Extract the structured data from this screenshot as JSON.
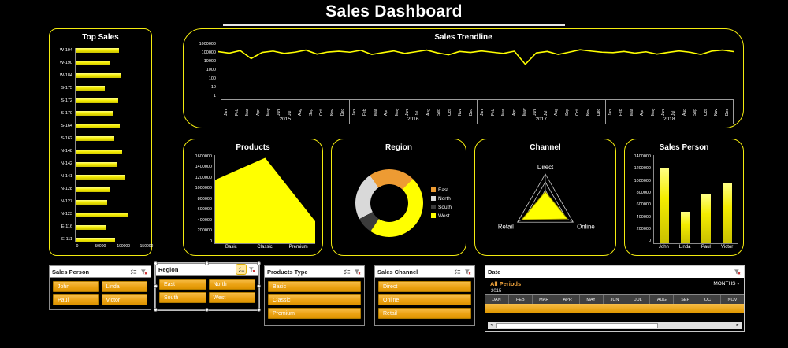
{
  "title": "Sales Dashboard",
  "colors": {
    "background": "#000000",
    "accent_yellow": "#FFF200",
    "slicer_gold": "#EBA213",
    "text_white": "#FFFFFF",
    "period_gold": "#EFA33C"
  },
  "chart_data": [
    {
      "panel": "top-sales",
      "type": "barh",
      "title": "Top Sales",
      "categories": [
        "W-194",
        "W-190",
        "W-184",
        "S-175",
        "S-172",
        "S-170",
        "S-164",
        "S-162",
        "N-148",
        "N-142",
        "N-141",
        "N-128",
        "N-127",
        "N-123",
        "E-116",
        "E-111"
      ],
      "values": [
        92000,
        72000,
        96000,
        62000,
        90000,
        78000,
        93000,
        81000,
        99000,
        87000,
        104000,
        73000,
        66000,
        112000,
        64000,
        84000
      ],
      "xticks": [
        "0",
        "50000",
        "100000",
        "150000"
      ],
      "xmax": 150000,
      "bar_color": "#FFFF00"
    },
    {
      "panel": "sales-trendline",
      "type": "line",
      "title": "Sales Trendline",
      "yticks": [
        "1000000",
        "100000",
        "10000",
        "1000",
        "100",
        "10",
        "1"
      ],
      "log_max": 6,
      "months": [
        "Jan",
        "Feb",
        "Mar",
        "Apr",
        "May",
        "Jun",
        "Jul",
        "Aug",
        "Sep",
        "Oct",
        "Nov",
        "Dec"
      ],
      "years": [
        "2015",
        "2016",
        "2017",
        "2018"
      ],
      "values": [
        110000,
        75000,
        140000,
        20000,
        90000,
        125000,
        70000,
        95000,
        160000,
        60000,
        100000,
        120000,
        95000,
        150000,
        55000,
        85000,
        130000,
        70000,
        105000,
        160000,
        80000,
        50000,
        115000,
        90000,
        130000,
        95000,
        70000,
        120000,
        5000,
        80000,
        115000,
        55000,
        95000,
        170000,
        125000,
        95000,
        85000,
        115000,
        75000,
        105000,
        60000,
        90000,
        130000,
        95000,
        55000,
        125000,
        160000,
        110000
      ],
      "line_color": "#FFFF00"
    },
    {
      "panel": "products",
      "type": "area",
      "title": "Products",
      "categories": [
        "Basic",
        "Classic",
        "Premium"
      ],
      "values": [
        1150000,
        1550000,
        400000
      ],
      "yticks": [
        "1600000",
        "1400000",
        "1200000",
        "1000000",
        "800000",
        "600000",
        "400000",
        "200000",
        "0"
      ],
      "ymax": 1600000,
      "fill_color": "#FFFF00"
    },
    {
      "panel": "region",
      "type": "donut",
      "title": "Region",
      "start_angle": -35,
      "segments": [
        {
          "name": "East",
          "value": 22,
          "color": "#ED9B33"
        },
        {
          "name": "West",
          "value": 47,
          "color": "#FFFF00"
        },
        {
          "name": "South",
          "value": 8,
          "color": "#3B3B3B"
        },
        {
          "name": "North",
          "value": 23,
          "color": "#D9D9D9"
        }
      ],
      "legend_order": [
        "East",
        "North",
        "South",
        "West"
      ]
    },
    {
      "panel": "channel",
      "type": "radar",
      "title": "Channel",
      "axes": [
        "Direct",
        "Online",
        "Retail"
      ],
      "values": [
        0.45,
        0.8,
        0.85
      ],
      "rings": 4,
      "fill_color": "#FFFF00",
      "grid_color": "#E3E3E3"
    },
    {
      "panel": "sales-person",
      "type": "column",
      "title": "Sales Person",
      "categories": [
        "John",
        "Linda",
        "Paul",
        "Victor"
      ],
      "values": [
        1200000,
        500000,
        780000,
        950000
      ],
      "yticks": [
        "1400000",
        "1200000",
        "1000000",
        "800000",
        "600000",
        "400000",
        "200000",
        "0"
      ],
      "ymax": 1400000,
      "bar_color": "#FFFF00"
    }
  ],
  "slicers": [
    {
      "title": "Sales Person",
      "items": [
        "John",
        "Linda",
        "Paul",
        "Victor"
      ],
      "columns": 2,
      "selected": false
    },
    {
      "title": "Region",
      "items": [
        "East",
        "North",
        "South",
        "West"
      ],
      "columns": 2,
      "selected": true
    },
    {
      "title": "Products Type",
      "items": [
        "Basic",
        "Classic",
        "Premium"
      ],
      "columns": 1,
      "selected": false
    },
    {
      "title": "Sales Channel",
      "items": [
        "Direct",
        "Online",
        "Retail"
      ],
      "columns": 1,
      "selected": false
    }
  ],
  "timeline": {
    "title": "Date",
    "period_label": "All Periods",
    "level_label": "MONTHS",
    "year_label": "2015",
    "months": [
      "JAN",
      "FEB",
      "MAR",
      "APR",
      "MAY",
      "JUN",
      "JUL",
      "AUG",
      "SEP",
      "OCT",
      "NOV"
    ]
  },
  "icons": [
    "multiselect-icon",
    "clear-filter-icon",
    "dropdown-caret-icon",
    "scroll-left-icon",
    "scroll-right-icon"
  ]
}
